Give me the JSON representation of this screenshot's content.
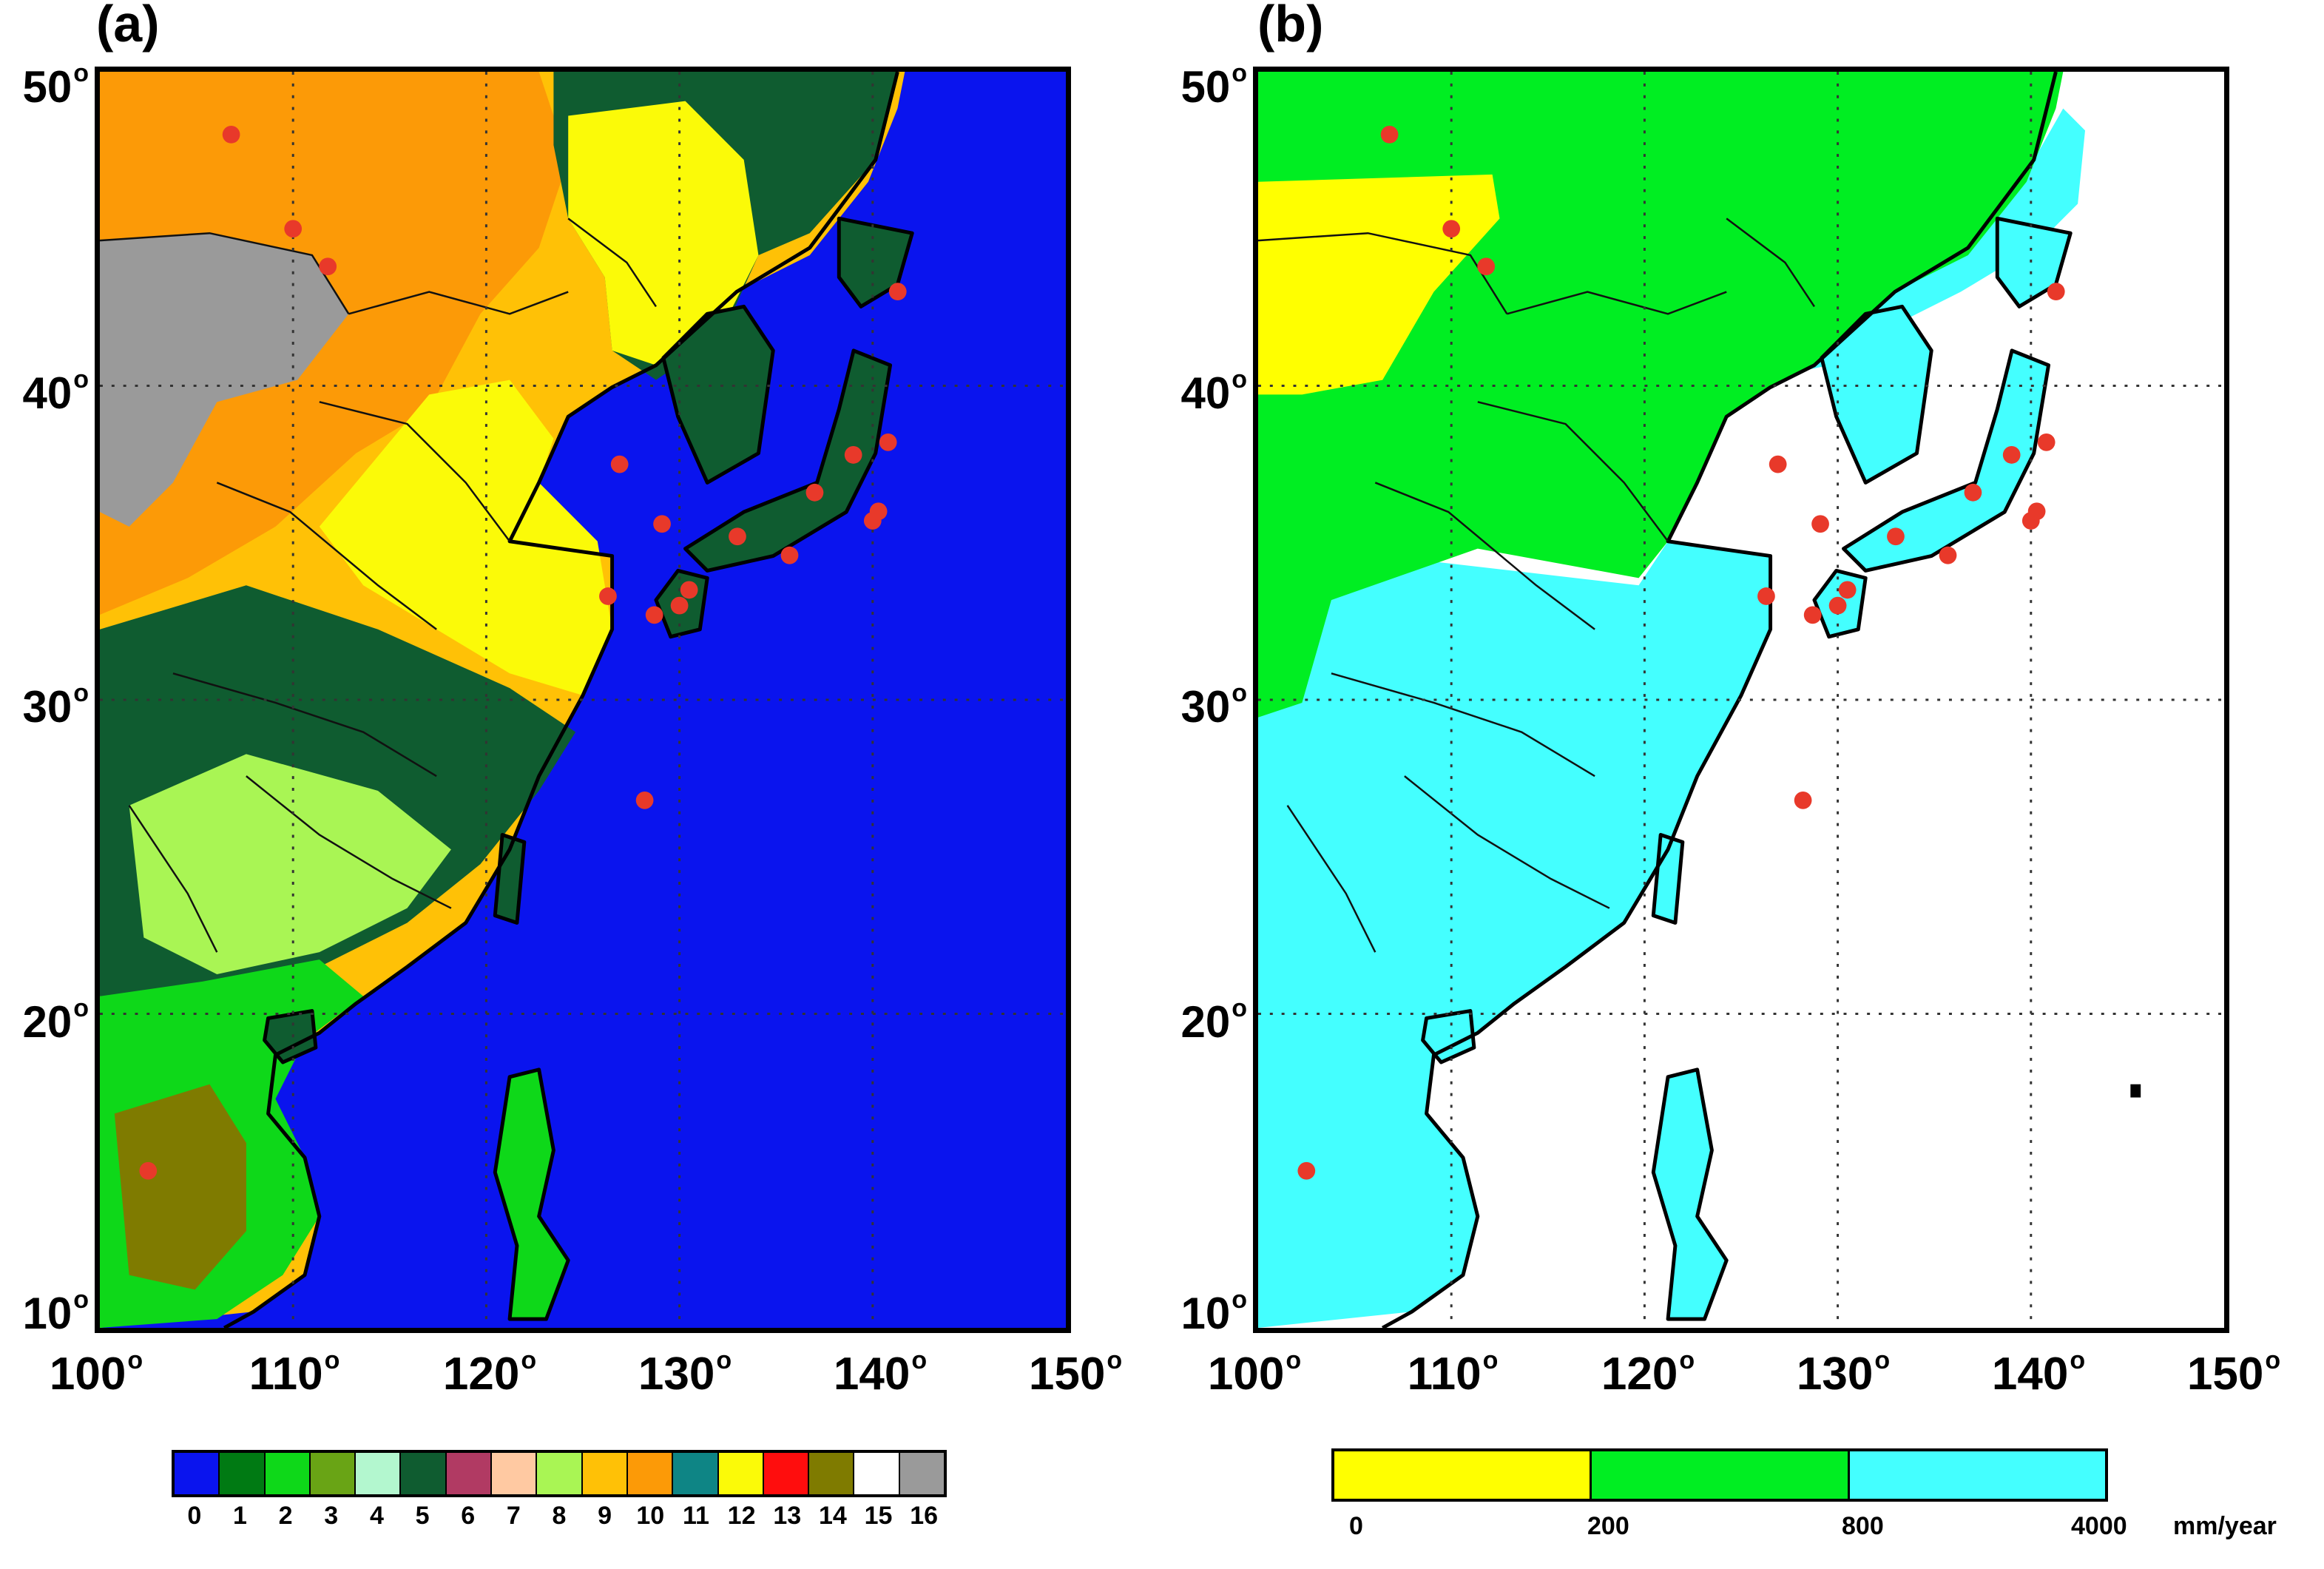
{
  "panels": {
    "a": {
      "letter": "(a)",
      "land_cover_classes": [
        {
          "label": "0",
          "color": "#0a14ee"
        },
        {
          "label": "1",
          "color": "#007a13"
        },
        {
          "label": "2",
          "color": "#0ed819"
        },
        {
          "label": "3",
          "color": "#69a415"
        },
        {
          "label": "4",
          "color": "#b3f7cf"
        },
        {
          "label": "5",
          "color": "#0f5c30"
        },
        {
          "label": "6",
          "color": "#b13a63"
        },
        {
          "label": "7",
          "color": "#ffc9a2"
        },
        {
          "label": "8",
          "color": "#a9f554"
        },
        {
          "label": "9",
          "color": "#ffc106"
        },
        {
          "label": "10",
          "color": "#fc9a07"
        },
        {
          "label": "11",
          "color": "#0e8585"
        },
        {
          "label": "12",
          "color": "#fbfa08"
        },
        {
          "label": "13",
          "color": "#ff0d0d"
        },
        {
          "label": "14",
          "color": "#7f7b00"
        },
        {
          "label": "15",
          "color": "#ffffff"
        },
        {
          "label": "16",
          "color": "#9a9a9a"
        }
      ]
    },
    "b": {
      "letter": "(b)",
      "precip_bins": [
        {
          "color": "#ffff00"
        },
        {
          "color": "#00ee22"
        },
        {
          "color": "#44ffff"
        }
      ],
      "precip_ticks": [
        "0",
        "200",
        "800",
        "4000"
      ],
      "precip_unit": "mm/year"
    }
  },
  "axes": {
    "lat_labels": [
      "50",
      "40",
      "30",
      "20",
      "10"
    ],
    "lon_labels": [
      "100",
      "110",
      "120",
      "130",
      "140",
      "150"
    ],
    "degree_symbol": "o"
  },
  "sites": [
    {
      "lon": 106.8,
      "lat": 48.0
    },
    {
      "lon": 110.0,
      "lat": 45.0
    },
    {
      "lon": 111.8,
      "lat": 43.8
    },
    {
      "lon": 126.9,
      "lat": 37.5
    },
    {
      "lon": 129.1,
      "lat": 35.6
    },
    {
      "lon": 126.3,
      "lat": 33.3
    },
    {
      "lon": 128.7,
      "lat": 32.7
    },
    {
      "lon": 130.0,
      "lat": 33.0
    },
    {
      "lon": 130.5,
      "lat": 33.5
    },
    {
      "lon": 133.0,
      "lat": 35.2
    },
    {
      "lon": 135.7,
      "lat": 34.6
    },
    {
      "lon": 137.0,
      "lat": 36.6
    },
    {
      "lon": 139.0,
      "lat": 37.8
    },
    {
      "lon": 140.0,
      "lat": 35.7
    },
    {
      "lon": 140.3,
      "lat": 36.0
    },
    {
      "lon": 140.8,
      "lat": 38.2
    },
    {
      "lon": 141.3,
      "lat": 43.0
    },
    {
      "lon": 128.2,
      "lat": 26.8
    },
    {
      "lon": 102.5,
      "lat": 15.0
    }
  ]
}
